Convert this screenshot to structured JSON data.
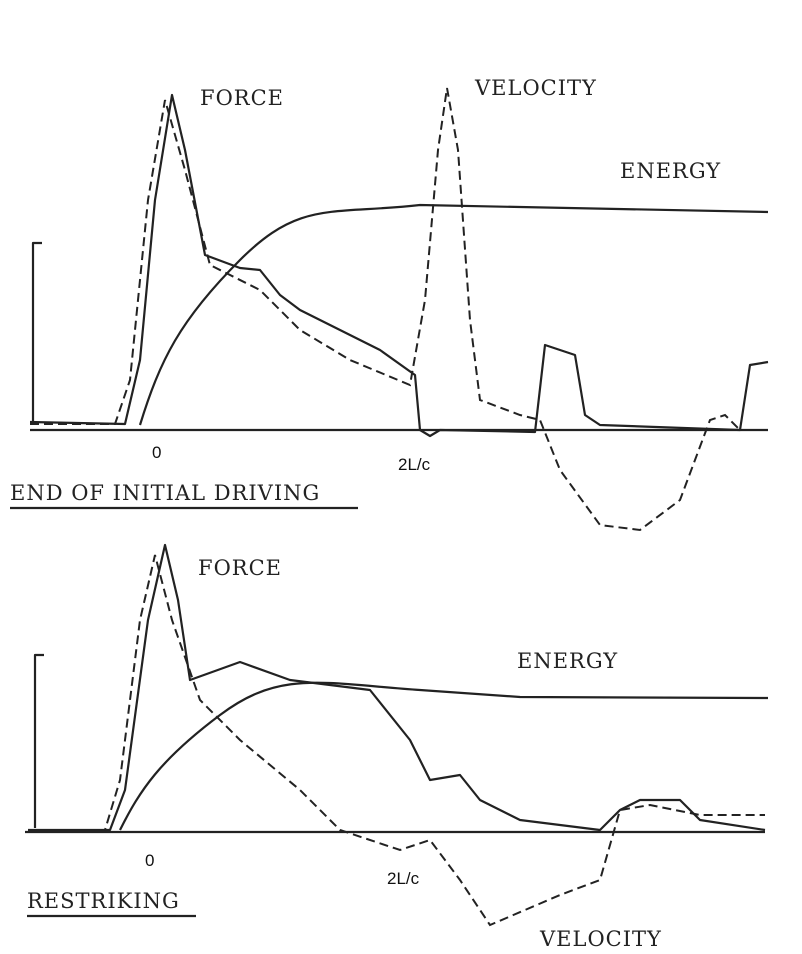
{
  "top": {
    "force_label": "FORCE",
    "velocity_label": "VELOCITY",
    "energy_label": "ENERGY",
    "zero_label": "0",
    "time_label": "2L/c",
    "caption": "END OF INITIAL DRIVING"
  },
  "bottom": {
    "force_label": "FORCE",
    "energy_label": "ENERGY",
    "zero_label": "0",
    "time_label": "2L/c",
    "caption": "RESTRIKING",
    "velocity_label": "VELOCITY"
  }
}
